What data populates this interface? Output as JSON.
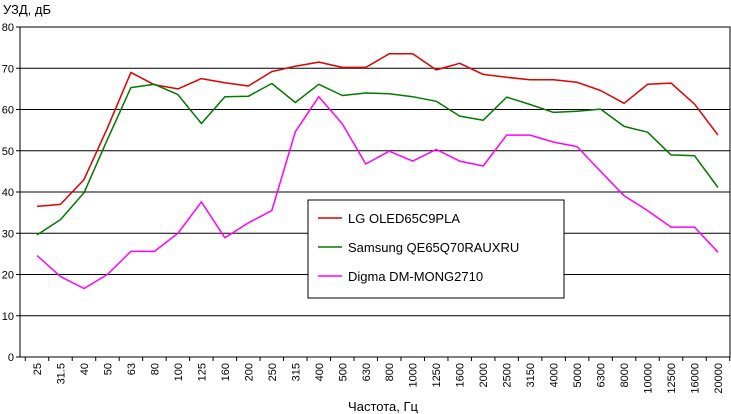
{
  "chart_data": {
    "type": "line",
    "ylabel": "УЗД, дБ",
    "xlabel": "Частота, Гц",
    "ylim": [
      0,
      80
    ],
    "yticks": [
      "0",
      "10",
      "20",
      "30",
      "40",
      "50",
      "60",
      "70",
      "80"
    ],
    "categories": [
      "25",
      "31.5",
      "40",
      "50",
      "63",
      "80",
      "100",
      "125",
      "160",
      "200",
      "250",
      "315",
      "400",
      "500",
      "630",
      "800",
      "1000",
      "1250",
      "1600",
      "2000",
      "2500",
      "3150",
      "4000",
      "5000",
      "6300",
      "8000",
      "10000",
      "12500",
      "16000",
      "20000"
    ],
    "grid": "horizontal",
    "legend_position": "center-bottom",
    "series": [
      {
        "name": "LG OLED65C9PLA",
        "color": "#e00000",
        "values": [
          36.5,
          37,
          43,
          55.5,
          69,
          66,
          65,
          67.5,
          66.5,
          65.7,
          69.2,
          70.5,
          71.5,
          70.2,
          70.2,
          73.5,
          73.5,
          69.6,
          71.2,
          68.5,
          67.8,
          67.2,
          67.2,
          66.6,
          64.6,
          61.5,
          66.1,
          66.4,
          61.3,
          53.8
        ]
      },
      {
        "name": "Samsung QE65Q70RAUXRU",
        "color": "#007a00",
        "values": [
          29.6,
          33.3,
          39.8,
          52.7,
          65.3,
          66.1,
          63.6,
          56.6,
          63.1,
          63.2,
          66.3,
          61.7,
          66.1,
          63.4,
          64.0,
          63.8,
          63.1,
          62.0,
          58.4,
          57.4,
          63.0,
          61.2,
          59.3,
          59.6,
          60.1,
          55.9,
          54.5,
          49.0,
          48.8,
          41.1
        ]
      },
      {
        "name": "Digma DM-MONG2710",
        "color": "#ff00ff",
        "values": [
          24.6,
          19.5,
          16.6,
          20,
          25.6,
          25.6,
          30,
          37.6,
          28.9,
          32.5,
          35.5,
          54.6,
          63.1,
          56.5,
          46.8,
          49.9,
          47.5,
          50.3,
          47.5,
          46.3,
          53.8,
          53.8,
          52.1,
          51.0,
          45.0,
          39.1,
          35.5,
          31.5,
          31.5,
          25.4
        ]
      }
    ]
  }
}
